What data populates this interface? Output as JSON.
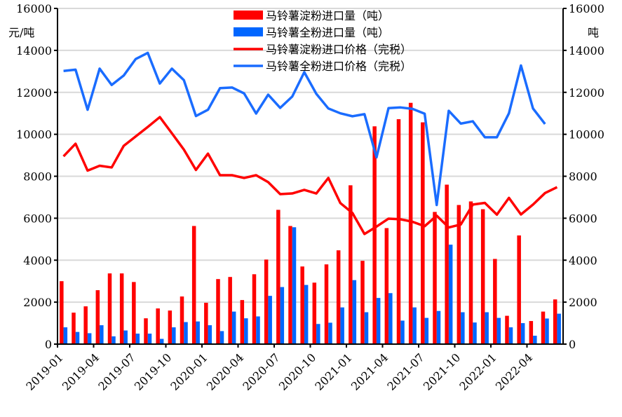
{
  "chart_data": {
    "type": "bar+line",
    "title": "",
    "ylabel_left": "元/吨",
    "ylabel_right": "吨",
    "ylim": [
      0,
      16000
    ],
    "yticks": [
      0,
      2000,
      4000,
      6000,
      8000,
      10000,
      12000,
      14000,
      16000
    ],
    "ytick_labels": [
      "0",
      "2000",
      "4000",
      "6000",
      "8000",
      "10000",
      "12000",
      "14000",
      "16000"
    ],
    "grid": true,
    "legend_position": "top-center",
    "categories": [
      "2019-01",
      "2019-02",
      "2019-03",
      "2019-04",
      "2019-05",
      "2019-06",
      "2019-07",
      "2019-08",
      "2019-09",
      "2019-10",
      "2019-11",
      "2019-12",
      "2020-01",
      "2020-02",
      "2020-03",
      "2020-04",
      "2020-05",
      "2020-06",
      "2020-07",
      "2020-08",
      "2020-09",
      "2020-10",
      "2020-11",
      "2020-12",
      "2021-01",
      "2021-02",
      "2021-03",
      "2021-04",
      "2021-05",
      "2021-06",
      "2021-07",
      "2021-08",
      "2021-09",
      "2021-10",
      "2021-11",
      "2021-12",
      "2022-01",
      "2022-02",
      "2022-03",
      "2022-04",
      "2022-05",
      "2022-06"
    ],
    "xtick_labels": [
      "2019-01",
      "2019-04",
      "2019-07",
      "2019-10",
      "2020-01",
      "2020-04",
      "2020-07",
      "2020-10",
      "2021-01",
      "2021-04",
      "2021-07",
      "2021-10",
      "2022-01",
      "2022-04"
    ],
    "series": [
      {
        "name": "马铃薯淀粉进口量（吨）",
        "type": "bar",
        "color": "#ff0000",
        "values": [
          3000,
          1500,
          1800,
          2570,
          3370,
          3370,
          2960,
          1230,
          1700,
          1600,
          2270,
          5630,
          1970,
          3100,
          3200,
          2100,
          3330,
          4030,
          6400,
          5630,
          3700,
          2930,
          3800,
          4470,
          7570,
          3970,
          10380,
          5530,
          10720,
          11500,
          10570,
          6300,
          7600,
          6630,
          6800,
          6430,
          4060,
          1350,
          5180,
          1100,
          1550,
          2130
        ]
      },
      {
        "name": "马铃薯全粉进口量（吨）",
        "type": "bar",
        "color": "#0066ff",
        "values": [
          800,
          580,
          520,
          900,
          370,
          650,
          500,
          500,
          250,
          800,
          1050,
          1080,
          900,
          620,
          1550,
          1230,
          1320,
          2300,
          2720,
          5570,
          2820,
          960,
          1020,
          1750,
          3050,
          1520,
          2200,
          2430,
          1120,
          1750,
          1250,
          1580,
          4740,
          1520,
          1030,
          1520,
          1250,
          800,
          1000,
          400,
          1220,
          1450
        ]
      },
      {
        "name": "马铃薯淀粉进口价格（完税）",
        "type": "line",
        "color": "#ff0000",
        "values": [
          8950,
          9550,
          8270,
          8500,
          8420,
          9450,
          9900,
          10350,
          10820,
          10050,
          9270,
          8300,
          9080,
          8050,
          8050,
          7920,
          8050,
          7720,
          7150,
          7180,
          7350,
          7180,
          7920,
          6720,
          6250,
          5250,
          5600,
          5980,
          5950,
          5830,
          5620,
          6120,
          5560,
          5700,
          6650,
          6730,
          6170,
          6970,
          6180,
          6650,
          7200,
          7480
        ]
      },
      {
        "name": "马铃薯全粉进口价格（完税）",
        "type": "line",
        "color": "#1a6cff",
        "values": [
          13020,
          13080,
          11170,
          13130,
          12350,
          12800,
          13590,
          13880,
          12420,
          13130,
          12580,
          10870,
          11170,
          12200,
          12230,
          11950,
          10990,
          11890,
          11260,
          11800,
          12960,
          11930,
          11230,
          11000,
          10860,
          10960,
          8900,
          11250,
          11280,
          11210,
          10980,
          6630,
          11120,
          10510,
          10620,
          9860,
          9860,
          11000,
          13280,
          11230,
          10490,
          null
        ]
      }
    ]
  }
}
